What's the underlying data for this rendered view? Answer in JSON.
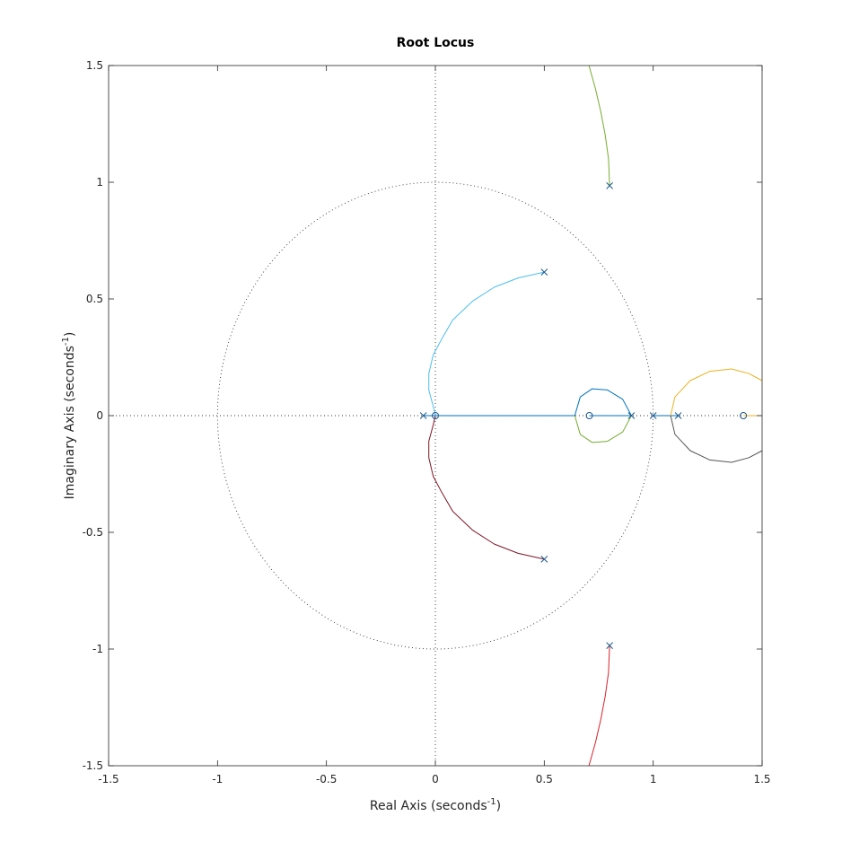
{
  "chart_data": {
    "type": "line",
    "title": "Root Locus",
    "xlabel": {
      "text": "Real Axis (seconds",
      "sup": "-1",
      "close": ")"
    },
    "ylabel": {
      "text": "Imaginary Axis (seconds",
      "sup": "-1",
      "close": ")"
    },
    "xlim": [
      -1.5,
      1.5
    ],
    "ylim": [
      -1.5,
      1.5
    ],
    "xticks": [
      -1.5,
      -1,
      -0.5,
      0,
      0.5,
      1,
      1.5
    ],
    "yticks": [
      -1.5,
      -1,
      -0.5,
      0,
      0.5,
      1,
      1.5
    ],
    "xtick_labels": [
      "-1.5",
      "-1",
      "-0.5",
      "0",
      "0.5",
      "1",
      "1.5"
    ],
    "ytick_labels": [
      "-1.5",
      "-1",
      "-0.5",
      "0",
      "0.5",
      "1",
      "1.5"
    ],
    "grid": false,
    "unit_circle": true,
    "colors": {
      "blue": "#0072bd",
      "cyan": "#4dbeee",
      "darkred": "#7e1626",
      "green": "#77ac30",
      "red": "#d9232b",
      "orange": "#edb120",
      "gray": "#555555",
      "marker": "#1f5a8c",
      "dotted": "#333333"
    },
    "poles": [
      [
        0.5,
        0.615
      ],
      [
        0.5,
        -0.615
      ],
      [
        0.8,
        0.985
      ],
      [
        0.8,
        -0.985
      ],
      [
        -0.055,
        0
      ],
      [
        0.9,
        0
      ],
      [
        1.0,
        0
      ],
      [
        1.115,
        0
      ]
    ],
    "zeros": [
      [
        0,
        0
      ],
      [
        0.707,
        0
      ],
      [
        1.414,
        0
      ]
    ],
    "series": [
      {
        "color": "cyan",
        "points": [
          [
            0.5,
            0.615
          ],
          [
            0.38,
            0.59
          ],
          [
            0.27,
            0.55
          ],
          [
            0.17,
            0.49
          ],
          [
            0.08,
            0.41
          ],
          [
            0.03,
            0.33
          ],
          [
            -0.01,
            0.26
          ],
          [
            -0.03,
            0.18
          ],
          [
            -0.03,
            0.11
          ],
          [
            -0.01,
            0.04
          ],
          [
            0,
            0
          ]
        ]
      },
      {
        "color": "darkred",
        "points": [
          [
            0.5,
            -0.615
          ],
          [
            0.38,
            -0.59
          ],
          [
            0.27,
            -0.55
          ],
          [
            0.17,
            -0.49
          ],
          [
            0.08,
            -0.41
          ],
          [
            0.03,
            -0.33
          ],
          [
            -0.01,
            -0.26
          ],
          [
            -0.03,
            -0.18
          ],
          [
            -0.03,
            -0.11
          ],
          [
            -0.01,
            -0.04
          ],
          [
            0,
            0
          ]
        ]
      },
      {
        "color": "blue",
        "points": [
          [
            -0.055,
            0
          ],
          [
            0,
            0
          ]
        ]
      },
      {
        "color": "blue",
        "points": [
          [
            0,
            0
          ],
          [
            0.64,
            0
          ]
        ]
      },
      {
        "color": "blue",
        "points": [
          [
            0.64,
            0
          ],
          [
            0.665,
            0.08
          ],
          [
            0.72,
            0.115
          ],
          [
            0.79,
            0.11
          ],
          [
            0.86,
            0.07
          ],
          [
            0.9,
            0
          ]
        ]
      },
      {
        "color": "green",
        "points": [
          [
            0.64,
            0
          ],
          [
            0.665,
            -0.08
          ],
          [
            0.72,
            -0.115
          ],
          [
            0.79,
            -0.11
          ],
          [
            0.86,
            -0.07
          ],
          [
            0.9,
            0
          ]
        ]
      },
      {
        "color": "blue",
        "points": [
          [
            0.707,
            0
          ],
          [
            0.9,
            0
          ]
        ]
      },
      {
        "color": "blue",
        "points": [
          [
            1.0,
            0
          ],
          [
            1.08,
            0
          ]
        ]
      },
      {
        "color": "blue",
        "points": [
          [
            1.115,
            0
          ],
          [
            1.08,
            0
          ]
        ]
      },
      {
        "color": "orange",
        "points": [
          [
            1.08,
            0
          ],
          [
            1.1,
            0.08
          ],
          [
            1.17,
            0.15
          ],
          [
            1.26,
            0.19
          ],
          [
            1.36,
            0.2
          ],
          [
            1.44,
            0.18
          ],
          [
            1.5,
            0.15
          ]
        ]
      },
      {
        "color": "gray",
        "points": [
          [
            1.08,
            0
          ],
          [
            1.1,
            -0.08
          ],
          [
            1.17,
            -0.15
          ],
          [
            1.26,
            -0.19
          ],
          [
            1.36,
            -0.2
          ],
          [
            1.44,
            -0.18
          ],
          [
            1.5,
            -0.15
          ]
        ]
      },
      {
        "color": "orange",
        "points": [
          [
            1.414,
            0
          ],
          [
            1.5,
            0
          ]
        ]
      },
      {
        "color": "green",
        "points": [
          [
            0.8,
            0.985
          ],
          [
            0.795,
            1.1
          ],
          [
            0.78,
            1.2
          ],
          [
            0.76,
            1.3
          ],
          [
            0.735,
            1.4
          ],
          [
            0.705,
            1.5
          ]
        ]
      },
      {
        "color": "red",
        "points": [
          [
            0.8,
            -0.985
          ],
          [
            0.795,
            -1.1
          ],
          [
            0.78,
            -1.2
          ],
          [
            0.76,
            -1.3
          ],
          [
            0.735,
            -1.4
          ],
          [
            0.705,
            -1.5
          ]
        ]
      }
    ]
  }
}
